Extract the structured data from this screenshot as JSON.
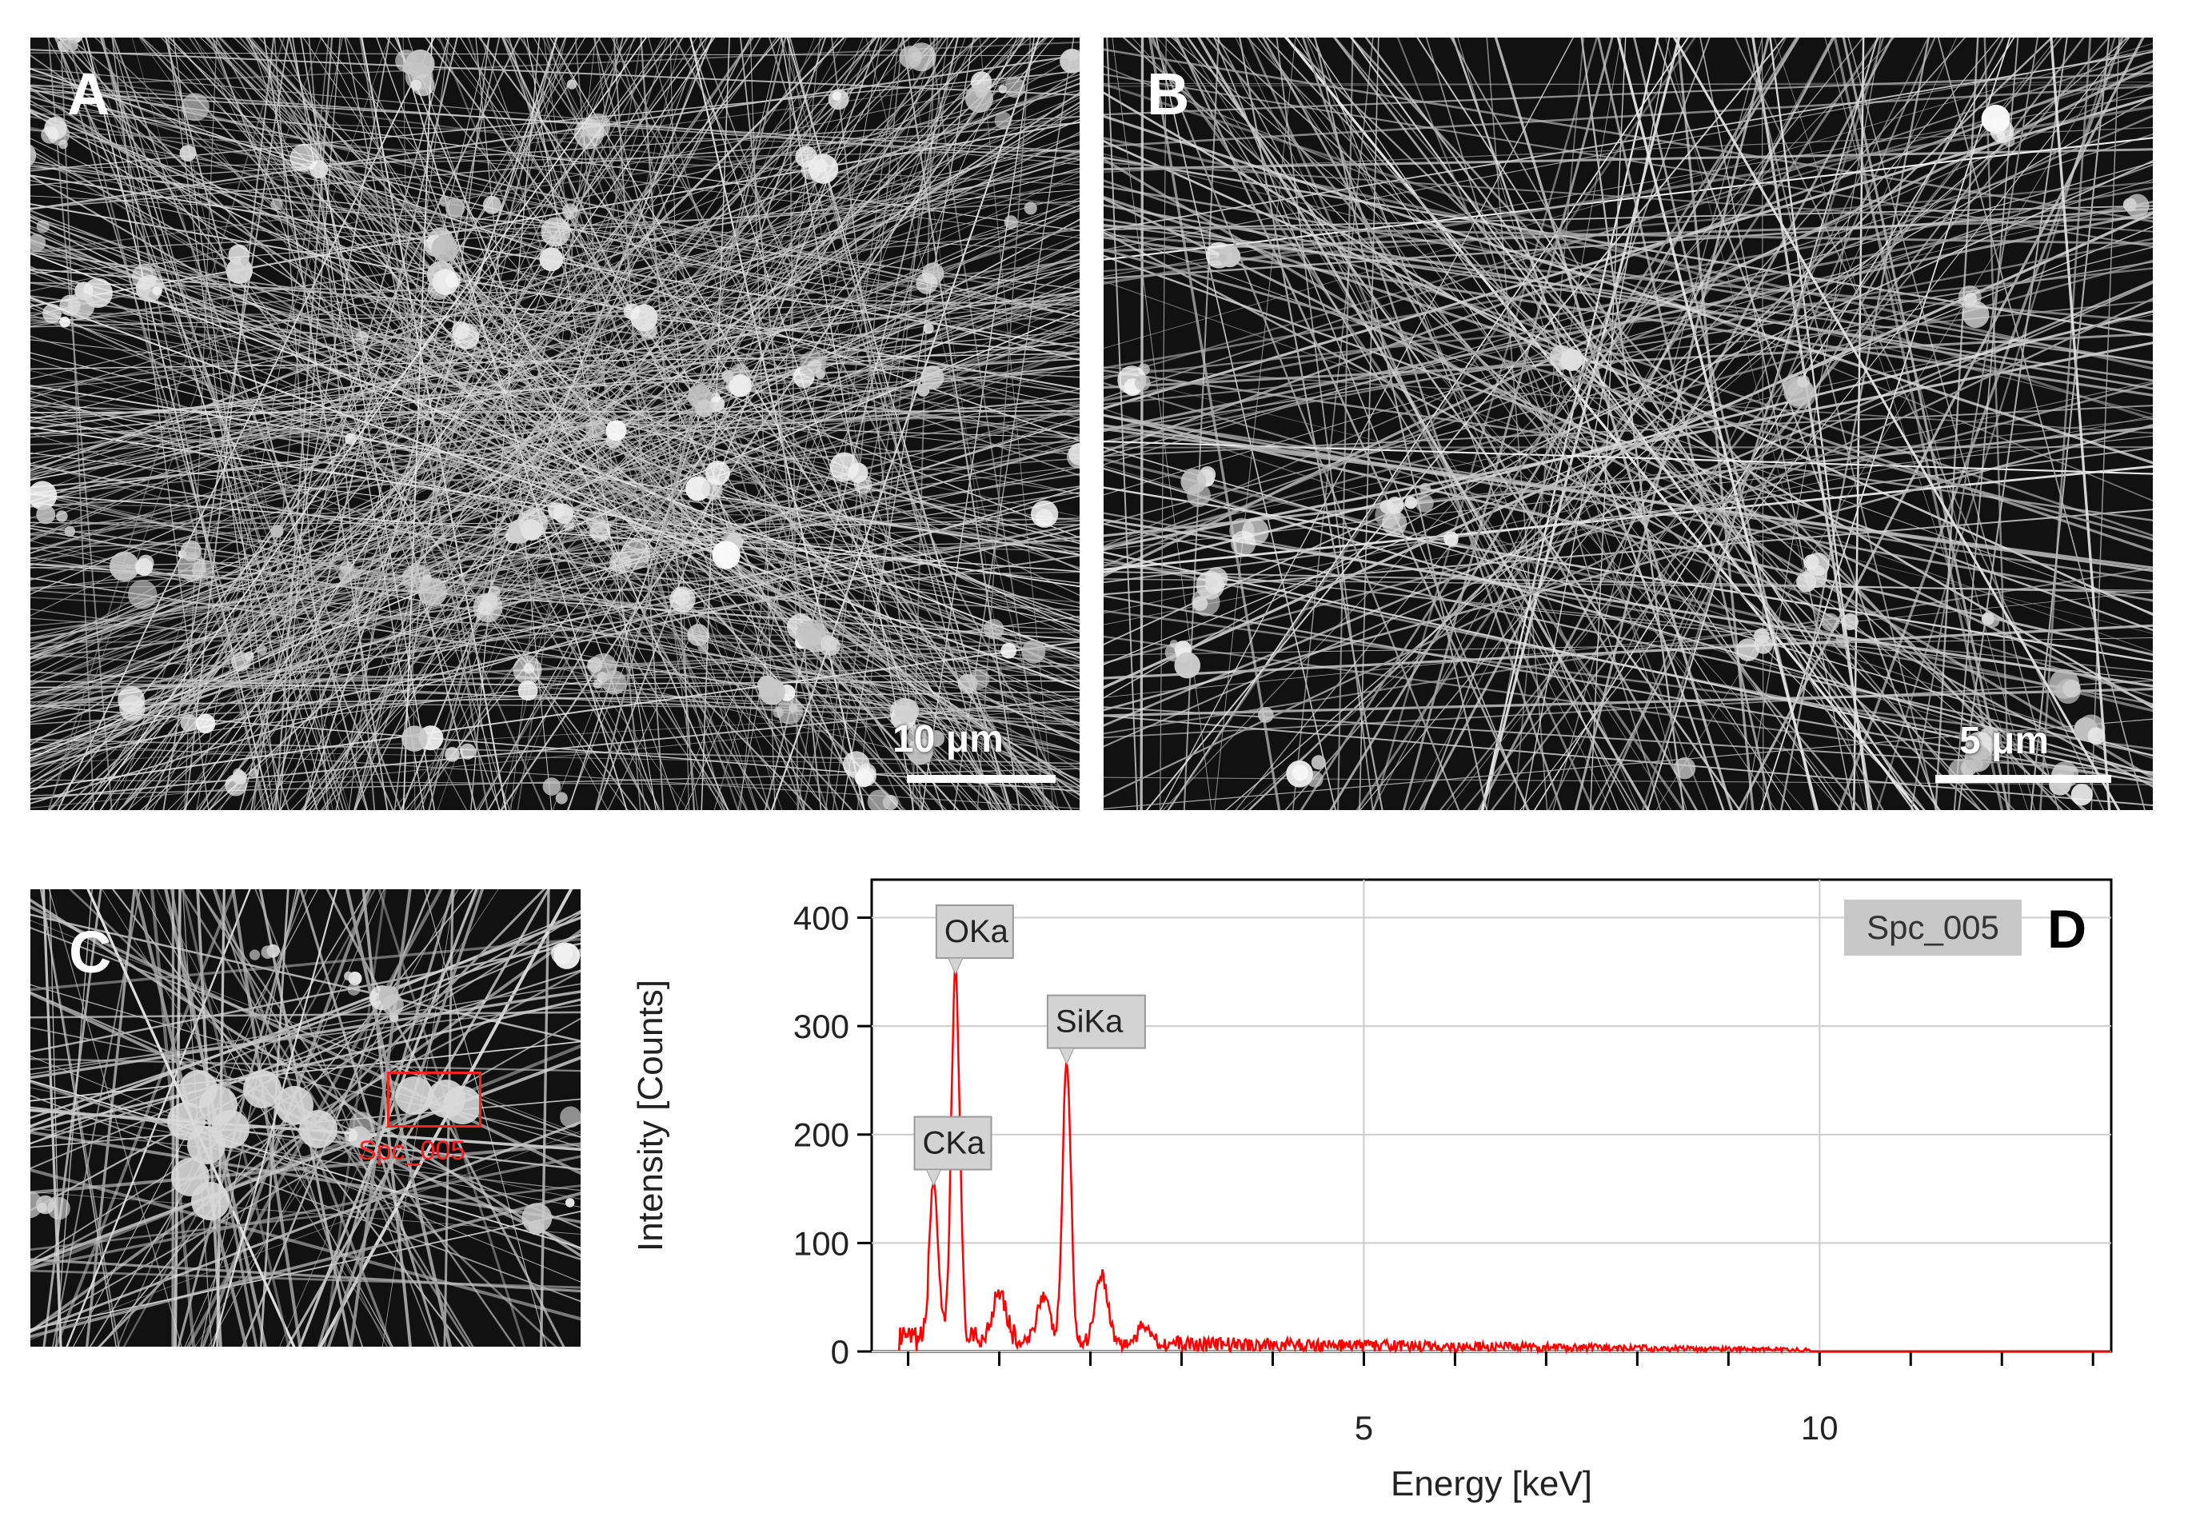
{
  "figure": {
    "panels": {
      "A": {
        "letter": "A",
        "scale_label": "10 μm"
      },
      "B": {
        "letter": "B",
        "scale_label": "5 μm"
      },
      "C": {
        "letter": "C",
        "roi_label": "Spc_005"
      },
      "D": {
        "letter": "D"
      }
    }
  },
  "colors": {
    "spectrum": "#ff0000",
    "grid": "#cccccc",
    "label_box": "#d3d3d3",
    "roi": "#ff2020"
  },
  "chart_data": {
    "type": "line",
    "title": "",
    "xlabel": "Energy [keV]",
    "ylabel": "Intensity [Counts]",
    "xlim": [
      -0.4,
      13.2
    ],
    "ylim": [
      0,
      435
    ],
    "x_ticks": [
      5,
      10
    ],
    "y_ticks": [
      0,
      100,
      200,
      300,
      400
    ],
    "legend": "Spc_005",
    "series": [
      {
        "name": "Spc_005",
        "peaks": [
          {
            "x": 0.28,
            "y": 150,
            "label": "CKa"
          },
          {
            "x": 0.52,
            "y": 345,
            "label": "OKa"
          },
          {
            "x": 1.0,
            "y": 48,
            "label": ""
          },
          {
            "x": 1.48,
            "y": 45,
            "label": ""
          },
          {
            "x": 1.74,
            "y": 262,
            "label": "SiKa"
          },
          {
            "x": 2.12,
            "y": 65,
            "label": ""
          },
          {
            "x": 2.6,
            "y": 18,
            "label": ""
          }
        ],
        "baseline_end_x": 9.9
      }
    ],
    "annotations": [
      "CKa",
      "OKa",
      "SiKa"
    ]
  }
}
